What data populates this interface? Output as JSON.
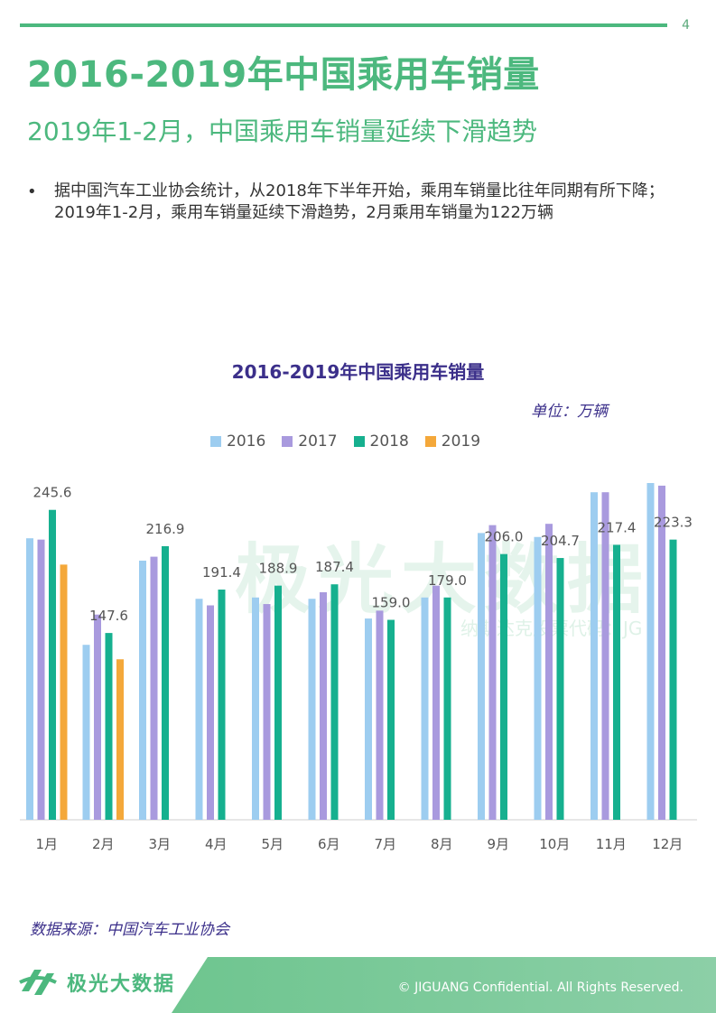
{
  "page_number": "4",
  "title": "2016-2019年中国乘用车销量",
  "subtitle": "2019年1-2月，中国乘用车销量延续下滑趋势",
  "bullet": "据中国汽车工业协会统计，从2018年下半年开始，乘用车销量比往年同期有所下降；2019年1-2月，乘用车销量延续下滑趋势，2月乘用车销量为122万辆",
  "unit": "单位：万辆",
  "source": "数据来源：中国汽车工业协会",
  "watermark": "极光大数据",
  "watermark_sub": "纳斯达克股票代码：JG",
  "footer": {
    "brand": "极光大数据",
    "copyright": "© JIGUANG Confidential. All Rights Reserved."
  },
  "colors": {
    "2016": "#9dcdf0",
    "2017": "#a99ade",
    "2018": "#16b08f",
    "2019": "#f4a83a"
  },
  "chart_data": {
    "type": "bar",
    "title": "2016-2019年中国乘用车销量",
    "categories": [
      "1月",
      "2月",
      "3月",
      "4月",
      "5月",
      "6月",
      "7月",
      "8月",
      "9月",
      "10月",
      "11月",
      "12月"
    ],
    "series": [
      {
        "name": "2016",
        "values": [
          214,
          133,
          197,
          168,
          169,
          168,
          153,
          169,
          218,
          215,
          249,
          256
        ]
      },
      {
        "name": "2017",
        "values": [
          213,
          156,
          200,
          163,
          164,
          173,
          159,
          178,
          224,
          225,
          249,
          254
        ]
      },
      {
        "name": "2018",
        "values": [
          235.6,
          142,
          208,
          175,
          178,
          179,
          152,
          169,
          202,
          199,
          209,
          213
        ]
      },
      {
        "name": "2019",
        "values": [
          194,
          122,
          null,
          null,
          null,
          null,
          null,
          null,
          null,
          null,
          null,
          null
        ]
      }
    ],
    "data_labels": [
      {
        "category": "1月",
        "text": "245.6"
      },
      {
        "category": "2月",
        "text": "147.6"
      },
      {
        "category": "3月",
        "text": "216.9"
      },
      {
        "category": "4月",
        "text": "191.4"
      },
      {
        "category": "5月",
        "text": "188.9"
      },
      {
        "category": "6月",
        "text": "187.4"
      },
      {
        "category": "7月",
        "text": "159.0"
      },
      {
        "category": "8月",
        "text": "179.0"
      },
      {
        "category": "9月",
        "text": "206.0"
      },
      {
        "category": "10月",
        "text": "204.7"
      },
      {
        "category": "11月",
        "text": "217.4"
      },
      {
        "category": "12月",
        "text": "223.3"
      }
    ],
    "ylim": [
      0,
      260
    ],
    "grid": false,
    "legend": "top"
  }
}
